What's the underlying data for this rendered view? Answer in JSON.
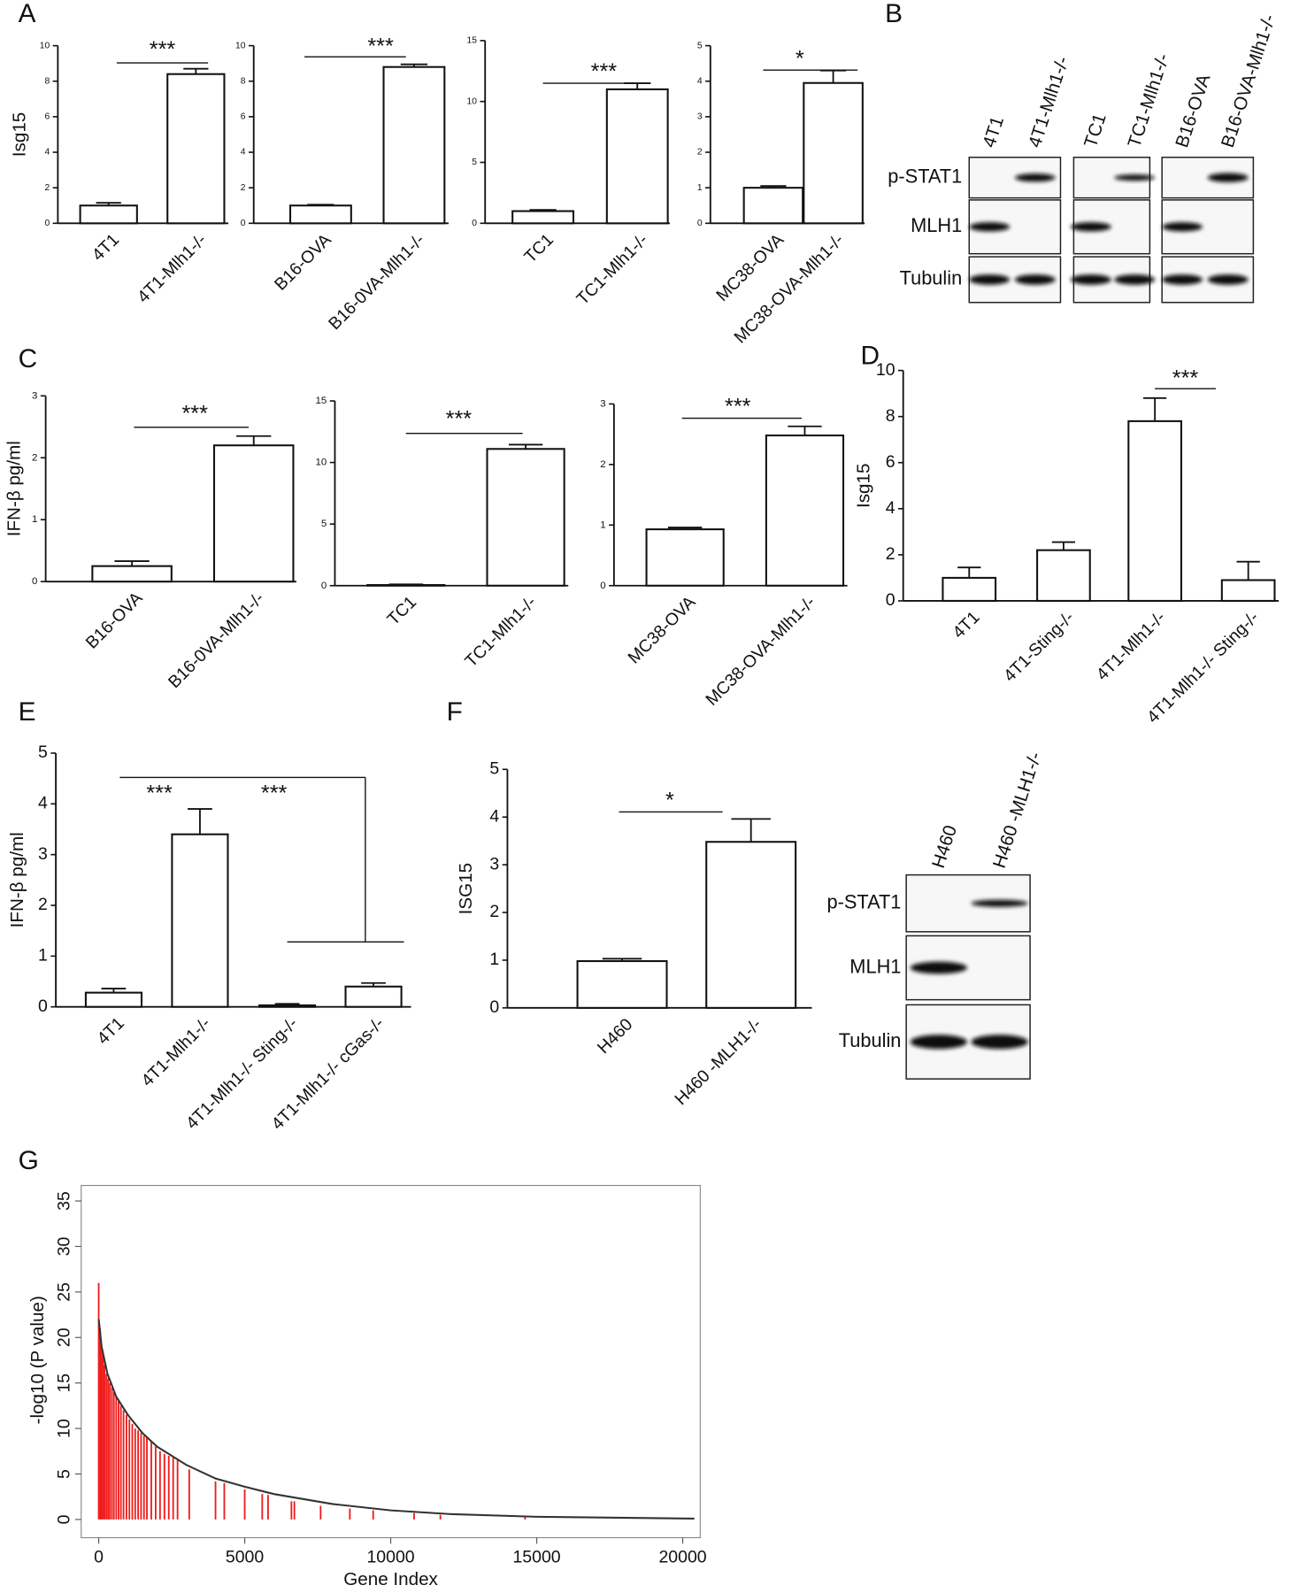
{
  "panel_labels": [
    "A",
    "B",
    "C",
    "D",
    "E",
    "F",
    "G"
  ],
  "chart_data": [
    {
      "type": "bar",
      "y_label": "Isg15",
      "categories": [
        "4T1",
        "4T1-Mlh1-/-"
      ],
      "values": [
        1.0,
        8.4
      ],
      "errors": [
        0.15,
        0.3
      ],
      "ylim": [
        0,
        10
      ],
      "yticks": [
        0,
        2,
        4,
        6,
        8,
        10
      ],
      "annotations": [
        "***"
      ]
    },
    {
      "type": "bar",
      "categories": [
        "B16-OVA",
        "B16-0VA-Mlh1-/-"
      ],
      "values": [
        1.0,
        8.8
      ],
      "errors": [
        0.05,
        0.15
      ],
      "ylim": [
        0,
        10
      ],
      "yticks": [
        0,
        2,
        4,
        6,
        8,
        10
      ],
      "annotations": [
        "***"
      ]
    },
    {
      "type": "bar",
      "categories": [
        "TC1",
        "TC1-Mlh1-/-"
      ],
      "values": [
        1.0,
        11.0
      ],
      "errors": [
        0.1,
        0.5
      ],
      "ylim": [
        0,
        15
      ],
      "yticks": [
        0,
        5,
        10,
        15
      ],
      "annotations": [
        "***"
      ]
    },
    {
      "type": "bar",
      "categories": [
        "MC38-OVA",
        "MC38-OVA-Mlh1-/-"
      ],
      "values": [
        1.0,
        3.95
      ],
      "errors": [
        0.05,
        0.35
      ],
      "ylim": [
        0,
        5
      ],
      "yticks": [
        0,
        1,
        2,
        3,
        4,
        5
      ],
      "annotations": [
        "*"
      ]
    },
    {
      "type": "bar",
      "y_label": "IFN-β pg/ml",
      "categories": [
        "B16-OVA",
        "B16-0VA-Mlh1-/-"
      ],
      "values": [
        0.25,
        2.2
      ],
      "errors": [
        0.08,
        0.15
      ],
      "ylim": [
        0,
        3
      ],
      "yticks": [
        0,
        1,
        2,
        3
      ],
      "annotations": [
        "***"
      ]
    },
    {
      "type": "bar",
      "categories": [
        "TC1",
        "TC1-Mlh1-/-"
      ],
      "values": [
        0.05,
        11.1
      ],
      "errors": [
        0.05,
        0.35
      ],
      "ylim": [
        0,
        15
      ],
      "yticks": [
        0,
        5,
        10,
        15
      ],
      "annotations": [
        "***"
      ]
    },
    {
      "type": "bar",
      "categories": [
        "MC38-OVA",
        "MC38-OVA-Mlh1-/-"
      ],
      "values": [
        0.93,
        2.48
      ],
      "errors": [
        0.03,
        0.15
      ],
      "ylim": [
        0,
        3
      ],
      "yticks": [
        0,
        1,
        2,
        3
      ],
      "annotations": [
        "***"
      ]
    },
    {
      "type": "bar",
      "y_label": "Isg15",
      "categories": [
        "4T1",
        "4T1-Sting-/-",
        "4T1-Mlh1-/-",
        "4T1-Mlh1-/- Sting-/-"
      ],
      "values": [
        1.0,
        2.2,
        7.8,
        0.9
      ],
      "errors": [
        0.45,
        0.35,
        1.0,
        0.8
      ],
      "ylim": [
        0,
        10
      ],
      "yticks": [
        0,
        2,
        4,
        6,
        8,
        10
      ],
      "annotations": [
        "***"
      ]
    },
    {
      "type": "bar",
      "y_label": "IFN-β pg/ml",
      "categories": [
        "4T1",
        "4T1-Mlh1-/-",
        "4T1-Mlh1-/- Sting-/-",
        "4T1-Mlh1-/- cGas-/-"
      ],
      "values": [
        0.28,
        3.4,
        0.03,
        0.4
      ],
      "errors": [
        0.08,
        0.5,
        0.03,
        0.07
      ],
      "ylim": [
        0,
        5
      ],
      "yticks": [
        0,
        1,
        2,
        3,
        4,
        5
      ],
      "annotations": [
        "***",
        "***"
      ]
    },
    {
      "type": "bar",
      "y_label": "ISG15",
      "categories": [
        "H460",
        "H460 -MLH1-/-"
      ],
      "values": [
        0.98,
        3.48
      ],
      "errors": [
        0.05,
        0.48
      ],
      "ylim": [
        0,
        5
      ],
      "yticks": [
        0,
        1,
        2,
        3,
        4,
        5
      ],
      "annotations": [
        "*"
      ]
    },
    {
      "type": "line",
      "x_label": "Gene Index",
      "y_label": "-log10 (P value)",
      "xlim": [
        -600,
        20600
      ],
      "ylim": [
        -2,
        36.7
      ],
      "xticks": [
        0,
        5000,
        10000,
        15000,
        20000
      ],
      "yticks": [
        0,
        5,
        10,
        15,
        20,
        25,
        30,
        35
      ],
      "series": [
        {
          "color": "#ee1c1c",
          "style": "spikes",
          "x": [
            0,
            50,
            100,
            150,
            200,
            260,
            320,
            380,
            450,
            520,
            600,
            680,
            760,
            850,
            950,
            1050,
            1150,
            1250,
            1350,
            1450,
            1550,
            1650,
            1800,
            1950,
            2100,
            2250,
            2400,
            2550,
            2700,
            3100,
            4000,
            4300,
            5000,
            5600,
            5800,
            6600,
            6700,
            7600,
            8600,
            9400,
            10800,
            11700,
            14600
          ],
          "values": [
            26,
            21,
            19,
            18,
            17,
            16,
            15.5,
            15,
            14.5,
            14,
            13.5,
            13,
            12.5,
            12,
            11.5,
            11,
            10.5,
            10,
            9.8,
            9.5,
            9.2,
            9,
            8.5,
            8,
            7.5,
            7.2,
            7,
            6.8,
            6.5,
            5.5,
            4.2,
            4,
            3.3,
            2.8,
            2.7,
            2,
            2,
            1.5,
            1.2,
            1,
            0.7,
            0.5,
            0.3
          ]
        },
        {
          "color": "#333333",
          "style": "line",
          "x": [
            0,
            100,
            300,
            600,
            1000,
            1500,
            2000,
            3000,
            4000,
            5000,
            6000,
            8000,
            10000,
            12000,
            15000,
            20400
          ],
          "values": [
            22,
            19,
            16,
            13.5,
            11.5,
            9.5,
            8,
            6,
            4.5,
            3.6,
            2.8,
            1.7,
            1.0,
            0.6,
            0.3,
            0.1
          ]
        }
      ]
    }
  ],
  "blots": [
    {
      "rows": [
        "p-STAT1",
        "MLH1",
        "Tubulin"
      ],
      "lanes": [
        "4T1",
        "4T1-Mlh1-/-",
        "TC1",
        "TC1-Mlh1-/-",
        "B16-OVA",
        "B16-OVA-Mlh1-/-"
      ]
    },
    {
      "rows": [
        "p-STAT1",
        "MLH1",
        "Tubulin"
      ],
      "lanes": [
        "H460",
        "H460 -MLH1-/-"
      ]
    }
  ]
}
